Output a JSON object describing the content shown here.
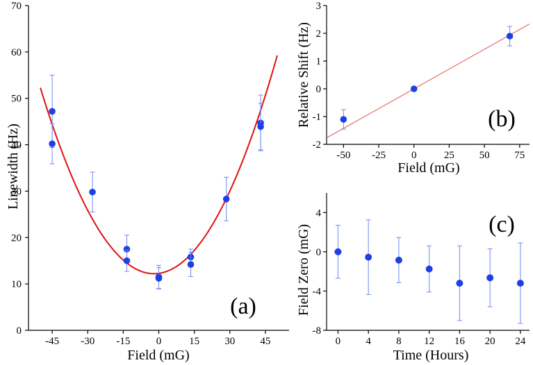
{
  "colors": {
    "point": "#1f3fe6",
    "errorbar": "#6f88f0",
    "fit_a": "#e01010",
    "fit_b": "#e85050",
    "axis": "#000000"
  },
  "chart_data": [
    {
      "id": "a",
      "type": "scatter",
      "panel_label": "(a)",
      "xlabel": "Field (mG)",
      "ylabel": "Linewidth (Hz)",
      "xlim": [
        -55,
        55
      ],
      "ylim": [
        0,
        70
      ],
      "xticks": [
        -45,
        -30,
        -15,
        0,
        15,
        30,
        45
      ],
      "yticks": [
        0,
        10,
        20,
        30,
        40,
        50,
        60,
        70
      ],
      "points": [
        {
          "x": -45,
          "y": 47.2,
          "err": 7.8
        },
        {
          "x": -45,
          "y": 40.2,
          "err": 4.3
        },
        {
          "x": -28,
          "y": 29.8,
          "err": 4.3
        },
        {
          "x": -13.5,
          "y": 17.5,
          "err": 3.0
        },
        {
          "x": -13.5,
          "y": 15.0,
          "err": 2.3
        },
        {
          "x": 0,
          "y": 11.5,
          "err": 2.5
        },
        {
          "x": 0,
          "y": 11.2,
          "err": 2.3
        },
        {
          "x": 13.5,
          "y": 15.8,
          "err": 1.7
        },
        {
          "x": 13.5,
          "y": 14.2,
          "err": 2.6
        },
        {
          "x": 28.5,
          "y": 28.3,
          "err": 4.7
        },
        {
          "x": 43,
          "y": 44.7,
          "err": 6.0
        },
        {
          "x": 43,
          "y": 43.9,
          "err": 5.0
        }
      ],
      "fit": {
        "type": "parabola",
        "vertex_x": -2,
        "vertex_y": 12.2,
        "curvature": 0.0174,
        "x_range": [
          -50,
          50
        ]
      }
    },
    {
      "id": "b",
      "type": "scatter",
      "panel_label": "(b)",
      "xlabel": "Field (mG)",
      "ylabel": "Relative Shift (Hz)",
      "xlim": [
        -62,
        82
      ],
      "ylim": [
        -2,
        3
      ],
      "xticks": [
        -50,
        -25,
        0,
        25,
        50,
        75
      ],
      "yticks": [
        -2,
        -1,
        0,
        1,
        2,
        3
      ],
      "points": [
        {
          "x": -50,
          "y": -1.1,
          "err": 0.35
        },
        {
          "x": 0,
          "y": 0.0,
          "err": 0.0
        },
        {
          "x": 68,
          "y": 1.9,
          "err": 0.35
        }
      ],
      "fit": {
        "type": "line",
        "slope": 0.0285,
        "intercept": 0.0
      }
    },
    {
      "id": "c",
      "type": "scatter",
      "panel_label": "(c)",
      "xlabel": "Time (Hours)",
      "ylabel": "Field Zero (mG)",
      "xlim": [
        -1.5,
        25.2
      ],
      "ylim": [
        -8,
        6
      ],
      "xticks": [
        0,
        4,
        8,
        12,
        16,
        20,
        24
      ],
      "yticks": [
        -8,
        -4,
        0,
        4
      ],
      "points": [
        {
          "x": 0,
          "y": 0.0,
          "err": 2.7
        },
        {
          "x": 4,
          "y": -0.55,
          "err": 3.8
        },
        {
          "x": 8,
          "y": -0.85,
          "err": 2.3
        },
        {
          "x": 12,
          "y": -1.75,
          "err": 2.35
        },
        {
          "x": 16,
          "y": -3.2,
          "err": 3.8
        },
        {
          "x": 20,
          "y": -2.65,
          "err": 2.95
        },
        {
          "x": 24,
          "y": -3.2,
          "err": 4.1
        }
      ]
    }
  ]
}
